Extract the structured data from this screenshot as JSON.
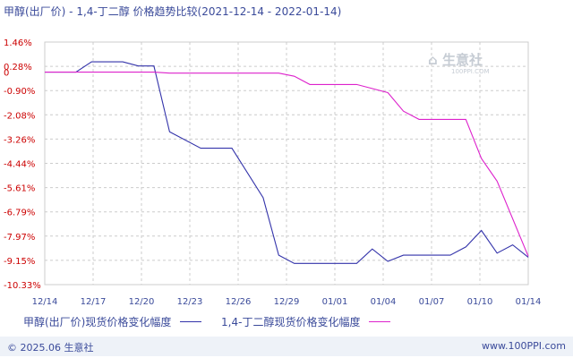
{
  "title": "甲醇(出厂价) - 1,4-丁二醇 价格趋势比较(2021-12-14 - 2022-01-14)",
  "watermark": {
    "text": "生意社",
    "sub": "100PPI.COM"
  },
  "footer": {
    "copyright": "© 2025.06 生意社",
    "site": "www.100PPI.com"
  },
  "colors": {
    "grid": "#cccccc",
    "axis_label": "#3a4a9a",
    "y_tick": "#cc0000",
    "series_1": "#3333aa",
    "series_2": "#dd22cc"
  },
  "chart_data": {
    "type": "line",
    "title": "甲醇(出厂价) - 1,4-丁二醇 价格趋势比较(2021-12-14 - 2022-01-14)",
    "x_labels": [
      "12/14",
      "12/17",
      "12/20",
      "12/23",
      "12/26",
      "12/29",
      "01/01",
      "01/04",
      "01/07",
      "01/10",
      "01/14"
    ],
    "y_ticks": [
      "1.46%",
      "0.28%",
      "-0.90%",
      "-2.08%",
      "-3.26%",
      "-4.44%",
      "-5.61%",
      "-6.79%",
      "-7.97%",
      "-9.15%",
      "-10.33%"
    ],
    "y_zero_label": "0",
    "ylim": [
      -10.33,
      1.46
    ],
    "xlim": [
      0,
      31
    ],
    "grid": true,
    "legend_position": "bottom",
    "series": [
      {
        "name": "甲醇(出厂价)现货价格变化幅度",
        "color": "#3333aa",
        "points": [
          [
            0,
            0
          ],
          [
            2,
            0
          ],
          [
            3,
            0.5
          ],
          [
            5,
            0.5
          ],
          [
            6,
            0.3
          ],
          [
            7,
            0.3
          ],
          [
            8,
            -2.9
          ],
          [
            10,
            -3.7
          ],
          [
            12,
            -3.7
          ],
          [
            14,
            -6.1
          ],
          [
            15,
            -8.9
          ],
          [
            16,
            -9.3
          ],
          [
            19,
            -9.3
          ],
          [
            20,
            -9.3
          ],
          [
            21,
            -8.6
          ],
          [
            22,
            -9.2
          ],
          [
            23,
            -8.9
          ],
          [
            26,
            -8.9
          ],
          [
            27,
            -8.5
          ],
          [
            28,
            -7.7
          ],
          [
            29,
            -8.8
          ],
          [
            30,
            -8.4
          ],
          [
            31,
            -9.0
          ]
        ]
      },
      {
        "name": "1,4-丁二醇现货价格变化幅度",
        "color": "#dd22cc",
        "points": [
          [
            0,
            0
          ],
          [
            7,
            0
          ],
          [
            8,
            -0.05
          ],
          [
            15,
            -0.05
          ],
          [
            16,
            -0.2
          ],
          [
            17,
            -0.6
          ],
          [
            20,
            -0.6
          ],
          [
            22,
            -1.0
          ],
          [
            23,
            -1.9
          ],
          [
            24,
            -2.3
          ],
          [
            27,
            -2.3
          ],
          [
            28,
            -4.2
          ],
          [
            29,
            -5.3
          ],
          [
            31,
            -8.95
          ]
        ]
      }
    ]
  }
}
